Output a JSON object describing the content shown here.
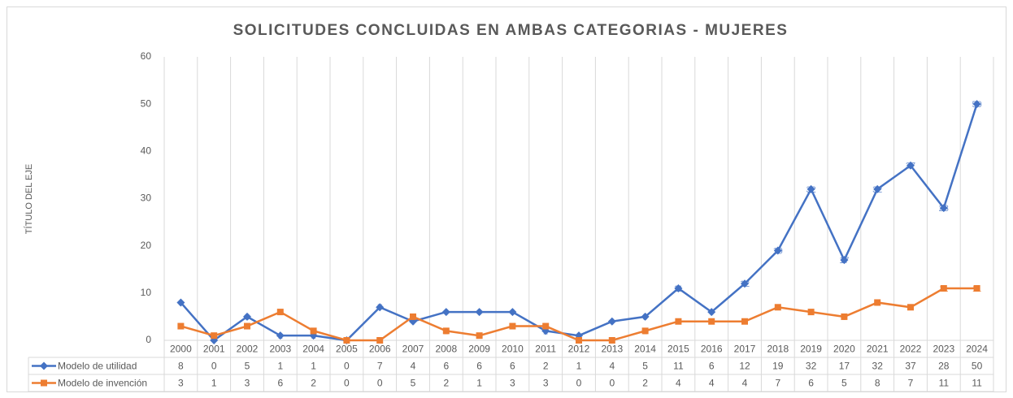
{
  "chart_data": {
    "type": "line",
    "title": "SOLICITUDES CONCLUIDAS EN AMBAS CATEGORIAS - MUJERES",
    "y_label": "TÍTULO DEL EJE",
    "categories": [
      "2000",
      "2001",
      "2002",
      "2003",
      "2004",
      "2005",
      "2006",
      "2007",
      "2008",
      "2009",
      "2010",
      "2011",
      "2012",
      "2013",
      "2014",
      "2015",
      "2016",
      "2017",
      "2018",
      "2019",
      "2020",
      "2021",
      "2022",
      "2023",
      "2024"
    ],
    "series": [
      {
        "name": "Modelo de utilidad",
        "color": "#4472c4",
        "marker": "diamond",
        "values": [
          8,
          0,
          5,
          1,
          1,
          0,
          7,
          4,
          6,
          6,
          6,
          2,
          1,
          4,
          5,
          11,
          6,
          12,
          19,
          32,
          17,
          32,
          37,
          28,
          50
        ]
      },
      {
        "name": "Modelo de invención",
        "color": "#ed7d31",
        "marker": "square",
        "values": [
          3,
          1,
          3,
          6,
          2,
          0,
          0,
          5,
          2,
          1,
          3,
          3,
          0,
          0,
          2,
          4,
          4,
          4,
          7,
          6,
          5,
          8,
          7,
          11,
          11
        ]
      }
    ],
    "ylim": [
      0,
      60
    ],
    "yticks": [
      0,
      10,
      20,
      30,
      40,
      50,
      60
    ],
    "data_table": true
  }
}
